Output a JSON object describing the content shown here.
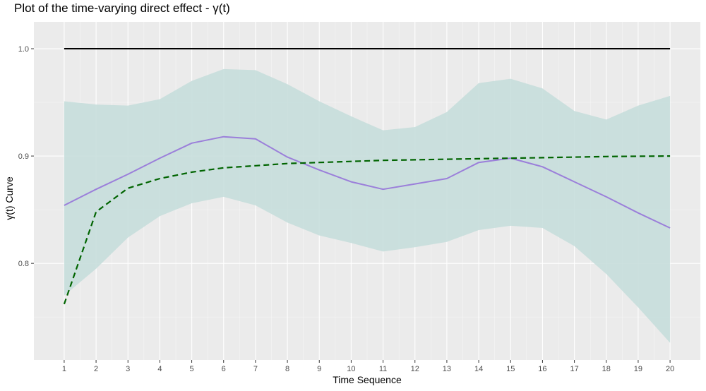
{
  "chart_data": {
    "type": "line",
    "title": "Plot of the time-varying direct effect - γ(t)",
    "xlabel": "Time Sequence",
    "ylabel": "γ(t) Curve",
    "x": [
      1,
      2,
      3,
      4,
      5,
      6,
      7,
      8,
      9,
      10,
      11,
      12,
      13,
      14,
      15,
      16,
      17,
      18,
      19,
      20
    ],
    "x_tick_labels": [
      "1",
      "2",
      "3",
      "4",
      "5",
      "6",
      "7",
      "8",
      "9",
      "10",
      "11",
      "12",
      "13",
      "14",
      "15",
      "16",
      "17",
      "18",
      "19",
      "20"
    ],
    "y_ticks": [
      0.8,
      0.9,
      1.0
    ],
    "y_tick_labels": [
      "0.8",
      "0.9",
      "1.0"
    ],
    "xlim": [
      0.05,
      20.95
    ],
    "ylim": [
      0.71,
      1.025
    ],
    "grid": true,
    "legend": "none",
    "band": {
      "lower": [
        0.77,
        0.795,
        0.824,
        0.844,
        0.856,
        0.862,
        0.854,
        0.838,
        0.826,
        0.819,
        0.811,
        0.815,
        0.82,
        0.831,
        0.835,
        0.833,
        0.816,
        0.79,
        0.759,
        0.726
      ],
      "upper": [
        0.951,
        0.948,
        0.947,
        0.953,
        0.97,
        0.981,
        0.98,
        0.967,
        0.951,
        0.937,
        0.924,
        0.927,
        0.941,
        0.968,
        0.972,
        0.963,
        0.942,
        0.934,
        0.947,
        0.956
      ],
      "color": "#c7dedb"
    },
    "series": [
      {
        "style": "solid",
        "color": "#9b7fda",
        "values": [
          0.854,
          0.869,
          0.883,
          0.898,
          0.912,
          0.918,
          0.916,
          0.899,
          0.887,
          0.876,
          0.869,
          0.874,
          0.879,
          0.894,
          0.898,
          0.89,
          0.876,
          0.862,
          0.847,
          0.833
        ]
      },
      {
        "style": "dashed",
        "color": "#006400",
        "values": [
          0.762,
          0.848,
          0.87,
          0.879,
          0.885,
          0.889,
          0.891,
          0.893,
          0.894,
          0.895,
          0.896,
          0.8965,
          0.897,
          0.8975,
          0.898,
          0.8985,
          0.899,
          0.8995,
          0.8998,
          0.9
        ]
      },
      {
        "style": "solid",
        "color": "#000000",
        "values": [
          1.0,
          1.0,
          1.0,
          1.0,
          1.0,
          1.0,
          1.0,
          1.0,
          1.0,
          1.0,
          1.0,
          1.0,
          1.0,
          1.0,
          1.0,
          1.0,
          1.0,
          1.0,
          1.0,
          1.0
        ]
      }
    ],
    "colors": {
      "panel": "#ebebeb",
      "grid_major": "#ffffff",
      "axis_text": "#4d4d4d"
    }
  }
}
